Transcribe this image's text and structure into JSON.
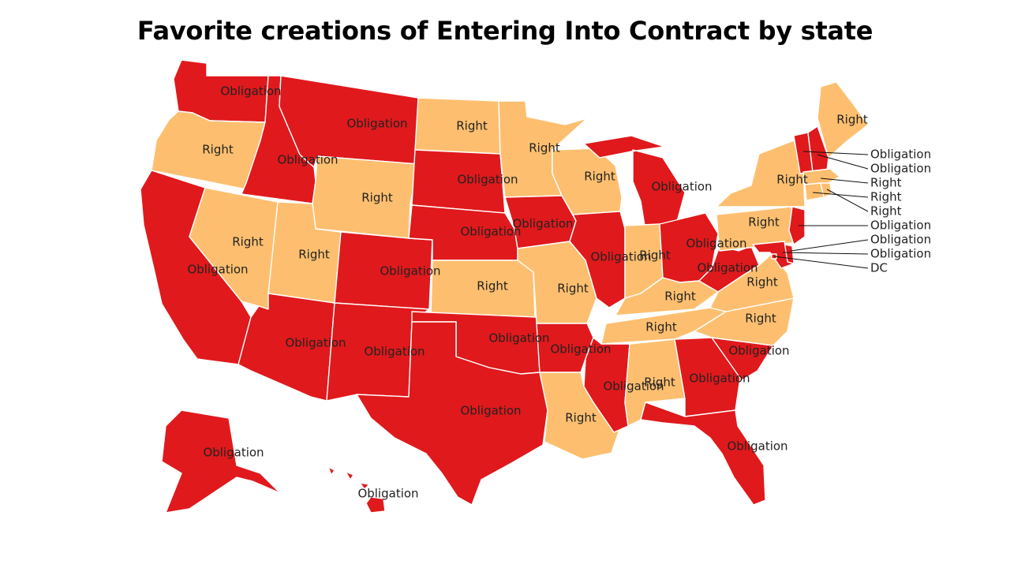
{
  "title": "Favorite creations of Entering Into Contract by state",
  "colors": {
    "Obligation": "#e0191c",
    "Right": "#fdbf6f",
    "border": "#ffffff"
  },
  "states": [
    {
      "id": "WA",
      "value": "Obligation",
      "label": "Obligation"
    },
    {
      "id": "OR",
      "value": "Right",
      "label": "Right"
    },
    {
      "id": "CA",
      "value": "Obligation",
      "label": "Obligation"
    },
    {
      "id": "ID",
      "value": "Obligation",
      "label": "Obligation"
    },
    {
      "id": "NV",
      "value": "Right",
      "label": "Right"
    },
    {
      "id": "MT",
      "value": "Obligation",
      "label": "Obligation"
    },
    {
      "id": "WY",
      "value": "Right",
      "label": "Right"
    },
    {
      "id": "UT",
      "value": "Right",
      "label": "Right"
    },
    {
      "id": "AZ",
      "value": "Obligation",
      "label": "Obligation"
    },
    {
      "id": "CO",
      "value": "Obligation",
      "label": "Obligation"
    },
    {
      "id": "NM",
      "value": "Obligation",
      "label": "Obligation"
    },
    {
      "id": "ND",
      "value": "Right",
      "label": "Right"
    },
    {
      "id": "SD",
      "value": "Obligation",
      "label": "Obligation"
    },
    {
      "id": "NE",
      "value": "Obligation",
      "label": "Obligation"
    },
    {
      "id": "KS",
      "value": "Right",
      "label": "Right"
    },
    {
      "id": "OK",
      "value": "Obligation",
      "label": "Obligation"
    },
    {
      "id": "TX",
      "value": "Obligation",
      "label": "Obligation"
    },
    {
      "id": "MN",
      "value": "Right",
      "label": "Right"
    },
    {
      "id": "IA",
      "value": "Obligation",
      "label": "Obligation"
    },
    {
      "id": "MO",
      "value": "Right",
      "label": "Right"
    },
    {
      "id": "AR",
      "value": "Obligation",
      "label": "Obligation"
    },
    {
      "id": "LA",
      "value": "Right",
      "label": "Right"
    },
    {
      "id": "WI",
      "value": "Right",
      "label": "Right"
    },
    {
      "id": "IL",
      "value": "Obligation",
      "label": "Obligation"
    },
    {
      "id": "MI",
      "value": "Obligation",
      "label": "Obligation"
    },
    {
      "id": "IN",
      "value": "Right",
      "label": "Right"
    },
    {
      "id": "OH",
      "value": "Obligation",
      "label": "Obligation"
    },
    {
      "id": "KY",
      "value": "Right",
      "label": "Right"
    },
    {
      "id": "TN",
      "value": "Right",
      "label": "Right"
    },
    {
      "id": "MS",
      "value": "Obligation",
      "label": "Obligation"
    },
    {
      "id": "AL",
      "value": "Right",
      "label": "Right"
    },
    {
      "id": "GA",
      "value": "Obligation",
      "label": "Obligation"
    },
    {
      "id": "FL",
      "value": "Obligation",
      "label": "Obligation"
    },
    {
      "id": "SC",
      "value": "Obligation",
      "label": "Obligation"
    },
    {
      "id": "NC",
      "value": "Right",
      "label": "Right"
    },
    {
      "id": "VA",
      "value": "Right",
      "label": "Right"
    },
    {
      "id": "WV",
      "value": "Obligation",
      "label": "Obligation"
    },
    {
      "id": "PA",
      "value": "Right",
      "label": "Right"
    },
    {
      "id": "NY",
      "value": "Right",
      "label": "Right"
    },
    {
      "id": "ME",
      "value": "Right",
      "label": "Right"
    },
    {
      "id": "AK",
      "value": "Obligation",
      "label": "Obligation"
    },
    {
      "id": "HI",
      "value": "Obligation",
      "label": "Obligation"
    },
    {
      "id": "VT",
      "value": "Obligation",
      "label": "Obligation"
    },
    {
      "id": "NH",
      "value": "Obligation",
      "label": "Obligation"
    },
    {
      "id": "MA",
      "value": "Right",
      "label": "Right"
    },
    {
      "id": "CT",
      "value": "Right",
      "label": "Right"
    },
    {
      "id": "RI",
      "value": "Right",
      "label": "Right"
    },
    {
      "id": "NJ",
      "value": "Obligation",
      "label": "Obligation"
    },
    {
      "id": "DE",
      "value": "Obligation",
      "label": "Obligation"
    },
    {
      "id": "MD",
      "value": "Obligation",
      "label": "Obligation"
    },
    {
      "id": "DC",
      "value": "Obligation",
      "label": "DC"
    }
  ]
}
